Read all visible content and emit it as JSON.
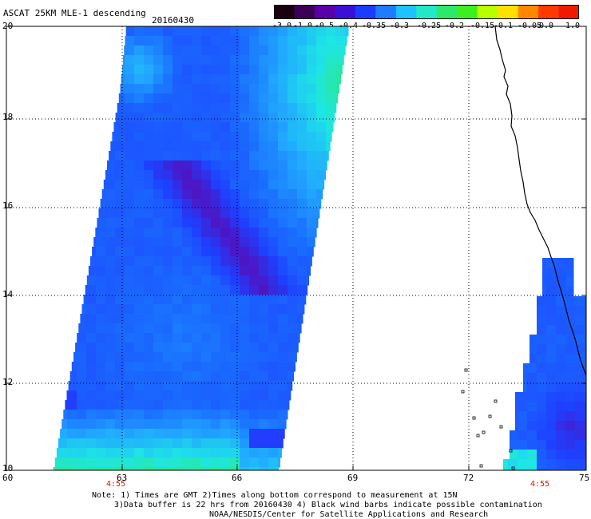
{
  "header": {
    "title": "ASCAT 25KM MLE-1 descending",
    "date": "20160430"
  },
  "colorbar": {
    "labels": [
      "-3.0",
      "-1.0",
      "-0.5",
      "-0.4",
      "-0.35",
      "-0.3",
      "-0.25",
      "-0.2",
      "-0.15",
      "-0.1",
      "-0.05",
      "0.0",
      "1.0"
    ],
    "colors": [
      "#1a0010",
      "#3a0055",
      "#5a00a8",
      "#3a10d8",
      "#1a3cff",
      "#1d7cff",
      "#1ec2ff",
      "#22e8c8",
      "#2ee86a",
      "#3cf020",
      "#b8ff00",
      "#ffe000",
      "#ff8800",
      "#ff3a00",
      "#f01a00"
    ]
  },
  "map": {
    "y_axis_labels": [
      "20",
      "18",
      "16",
      "14",
      "12",
      "10"
    ],
    "x_axis_labels": [
      "60",
      "63",
      "66",
      "69",
      "72",
      "75"
    ],
    "time_labels": [
      "4:55",
      "4:55"
    ],
    "palette": {
      "deep_purple": "#5a0aa8",
      "purple": "#4a18c8",
      "blue": "#1e40ff",
      "mid_blue": "#1a6cff",
      "light_blue": "#21a8ff",
      "cyan": "#1ee6e6",
      "green": "#2ee870",
      "light_green": "#66f040",
      "yellow_green": "#c8ff00",
      "coast": "#000000",
      "grid": "#000000"
    }
  },
  "notes": {
    "line1": "Note: 1) Times are GMT 2)Times along bottom correspond to measurement at 15N",
    "line2": "3)Data buffer is 22 hrs from 20160430 4) Black wind barbs indicate possible contamination",
    "line3": "NOAA/NESDIS/Center for Satellite Applications and Research"
  }
}
